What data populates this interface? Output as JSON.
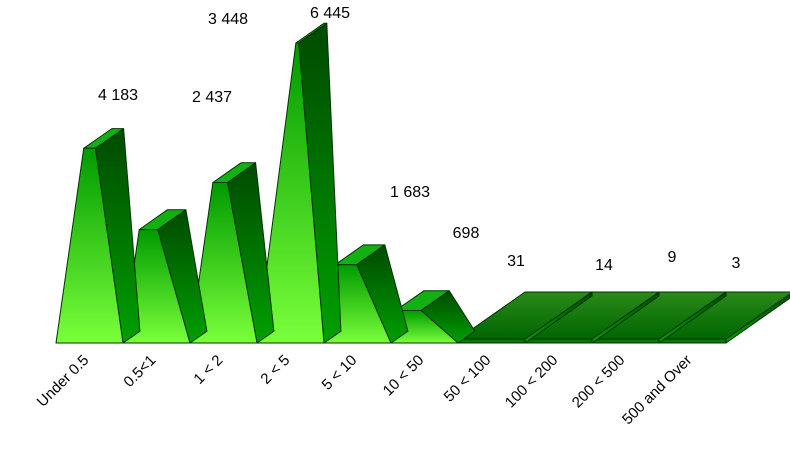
{
  "chart_data": {
    "type": "bar",
    "style": "3d-pyramid",
    "categories": [
      "Under 0.5",
      "0.5<1",
      "1 < 2",
      "2 < 5",
      "5 < 10",
      "10 < 50",
      "50 < 100",
      "100 < 200",
      "200 < 500",
      "500 and Over"
    ],
    "values": [
      4183,
      2437,
      3448,
      6445,
      1683,
      698,
      31,
      14,
      9,
      3
    ],
    "value_labels": [
      "4 183",
      "2 437",
      "3 448",
      "6 445",
      "1 683",
      "698",
      "31",
      "14",
      "9",
      "3"
    ],
    "title": "",
    "xlabel": "",
    "ylabel": "",
    "ylim": [
      0,
      6445
    ],
    "grid": false,
    "legend": "none",
    "colors": {
      "front_top": "#009a00",
      "front_bottom": "#7aff3a",
      "side_top": "#004a00",
      "side_bottom": "#00a000",
      "top_face": "#10b010",
      "floor_top": "#2a8a1a",
      "floor_bottom": "#006600"
    }
  }
}
